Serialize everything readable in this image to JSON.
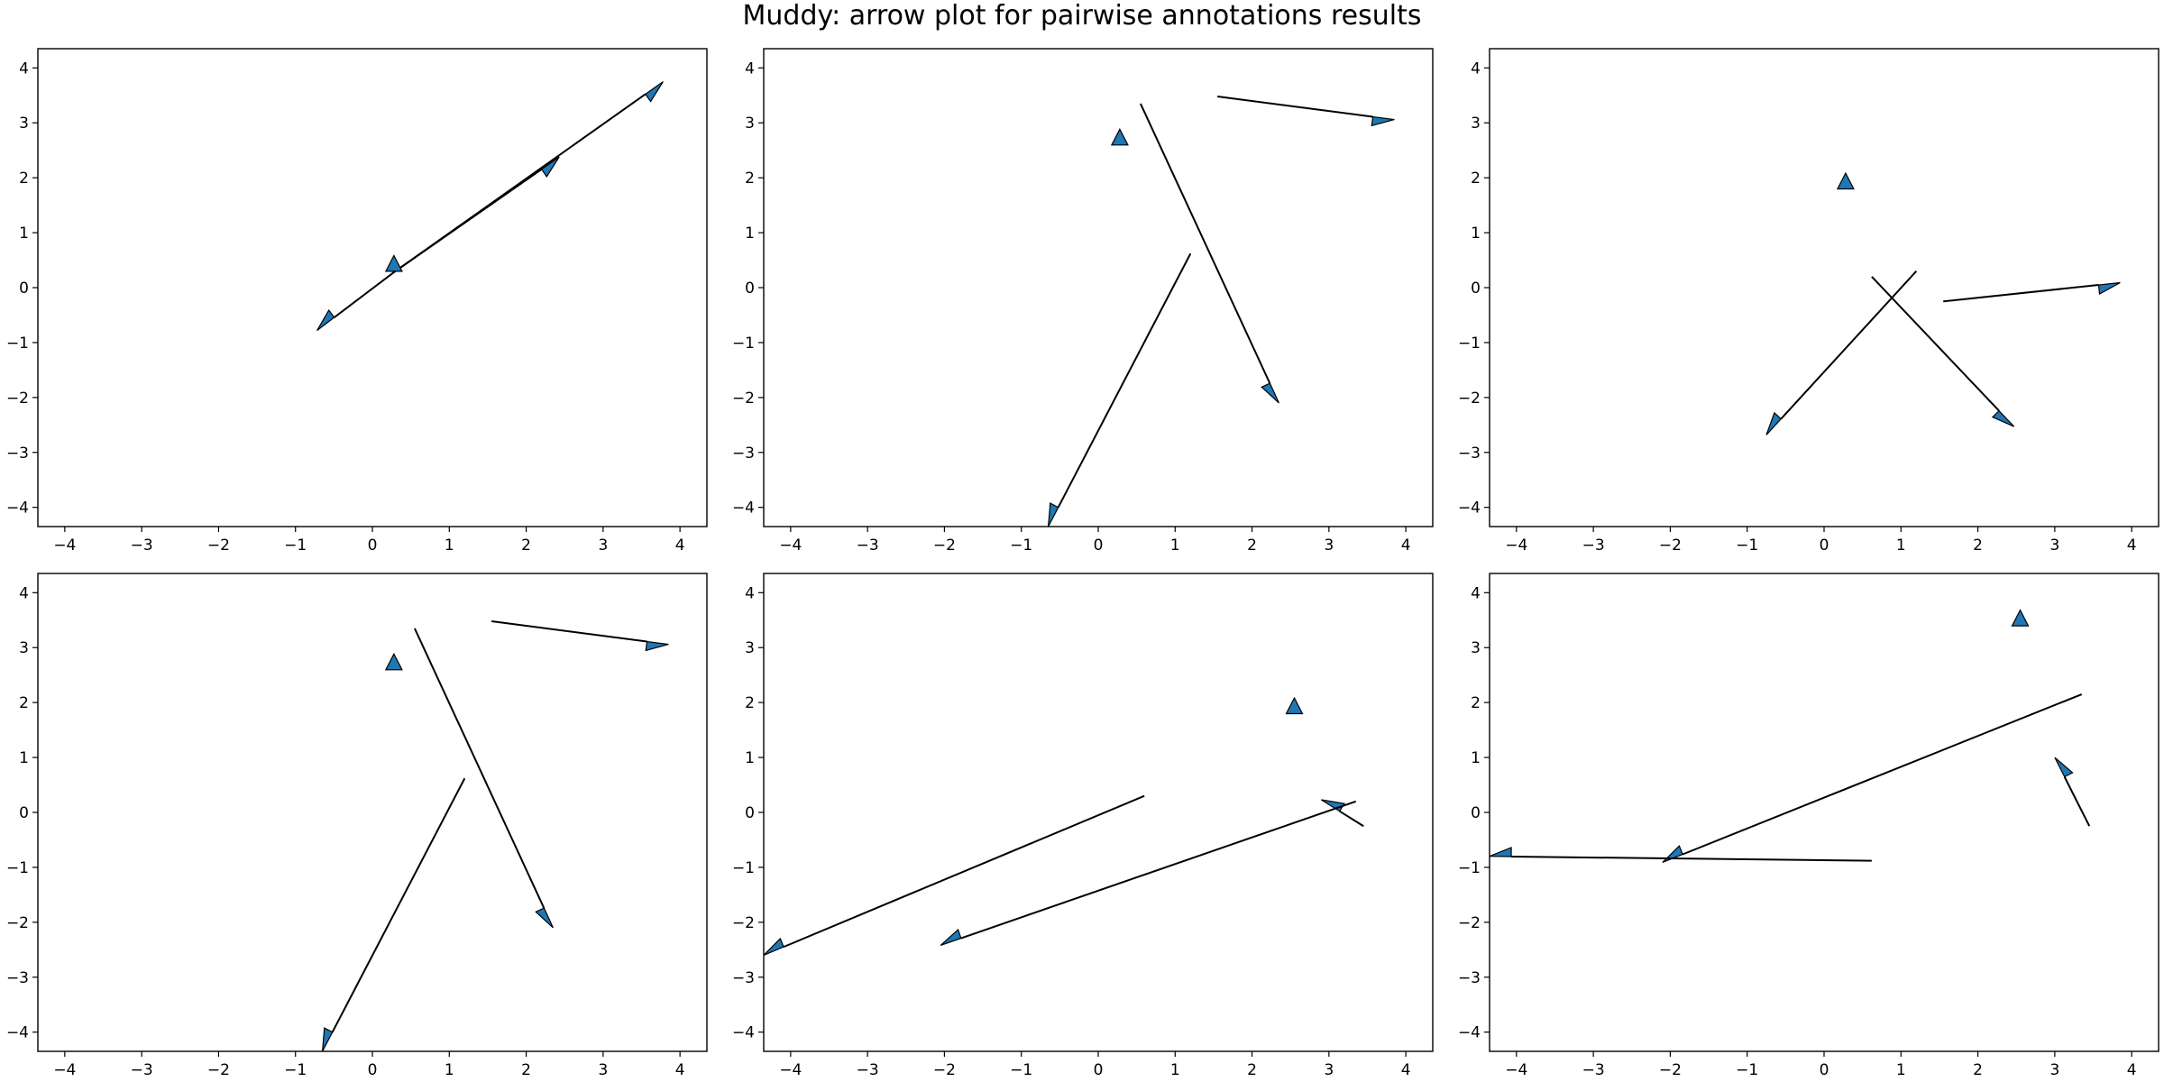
{
  "title": "Muddy: arrow plot for pairwise annotations results",
  "colors": {
    "arrow_fill": "#1f77b4",
    "arrow_edge": "#000000",
    "line": "#000000",
    "frame": "#000000"
  },
  "chart_data": {
    "type": "arrow",
    "grid": false,
    "xlim": [
      -4.35,
      4.35
    ],
    "ylim": [
      -4.35,
      4.35
    ],
    "xticks": [
      -4,
      -3,
      -2,
      -1,
      0,
      1,
      2,
      3,
      4
    ],
    "yticks": [
      -4,
      -3,
      -2,
      -1,
      0,
      1,
      2,
      3,
      4
    ],
    "xtick_labels": [
      "−4",
      "−3",
      "−2",
      "−1",
      "0",
      "1",
      "2",
      "3",
      "4"
    ],
    "ytick_labels": [
      "−4",
      "−3",
      "−2",
      "−1",
      "0",
      "1",
      "2",
      "3",
      "4"
    ],
    "panels": [
      {
        "markers": [
          [
            0.28,
            0.42
          ]
        ],
        "arrows": [
          {
            "x": 0.28,
            "y": 0.28,
            "dx": 3.5,
            "dy": 3.47
          },
          {
            "x": 0.28,
            "y": 0.28,
            "dx": -1.0,
            "dy": -1.06
          },
          {
            "x": 0.28,
            "y": 0.28,
            "dx": 2.15,
            "dy": 2.1
          }
        ]
      },
      {
        "markers": [
          [
            0.28,
            2.72
          ]
        ],
        "arrows": [
          {
            "x": 0.55,
            "y": 3.35,
            "dx": 1.8,
            "dy": -5.45
          },
          {
            "x": 1.2,
            "y": 0.62,
            "dx": -1.85,
            "dy": -4.97
          },
          {
            "x": 1.55,
            "y": 3.48,
            "dx": 2.3,
            "dy": -0.42
          }
        ]
      },
      {
        "markers": [
          [
            0.28,
            1.92
          ]
        ],
        "arrows": [
          {
            "x": 1.2,
            "y": 0.3,
            "dx": -1.95,
            "dy": -2.98
          },
          {
            "x": 0.62,
            "y": 0.2,
            "dx": 1.85,
            "dy": -2.73
          },
          {
            "x": 1.55,
            "y": -0.25,
            "dx": 2.3,
            "dy": 0.34
          }
        ]
      },
      {
        "markers": [
          [
            0.28,
            2.72
          ]
        ],
        "arrows": [
          {
            "x": 0.55,
            "y": 3.35,
            "dx": 1.8,
            "dy": -5.45
          },
          {
            "x": 1.2,
            "y": 0.62,
            "dx": -1.85,
            "dy": -4.97
          },
          {
            "x": 1.55,
            "y": 3.48,
            "dx": 2.3,
            "dy": -0.42
          }
        ]
      },
      {
        "markers": [
          [
            2.55,
            1.92
          ]
        ],
        "arrows": [
          {
            "x": 3.45,
            "y": -0.25,
            "dx": -0.55,
            "dy": 0.48
          },
          {
            "x": 3.35,
            "y": 0.2,
            "dx": -5.4,
            "dy": -2.62
          },
          {
            "x": 0.6,
            "y": 0.3,
            "dx": -4.95,
            "dy": -2.9
          }
        ]
      },
      {
        "markers": [
          [
            2.55,
            3.52
          ]
        ],
        "arrows": [
          {
            "x": 3.45,
            "y": -0.25,
            "dx": -0.45,
            "dy": 1.25
          },
          {
            "x": 3.35,
            "y": 2.15,
            "dx": -5.45,
            "dy": -3.06
          },
          {
            "x": 0.62,
            "y": -0.88,
            "dx": -4.97,
            "dy": 0.08
          }
        ]
      }
    ]
  }
}
